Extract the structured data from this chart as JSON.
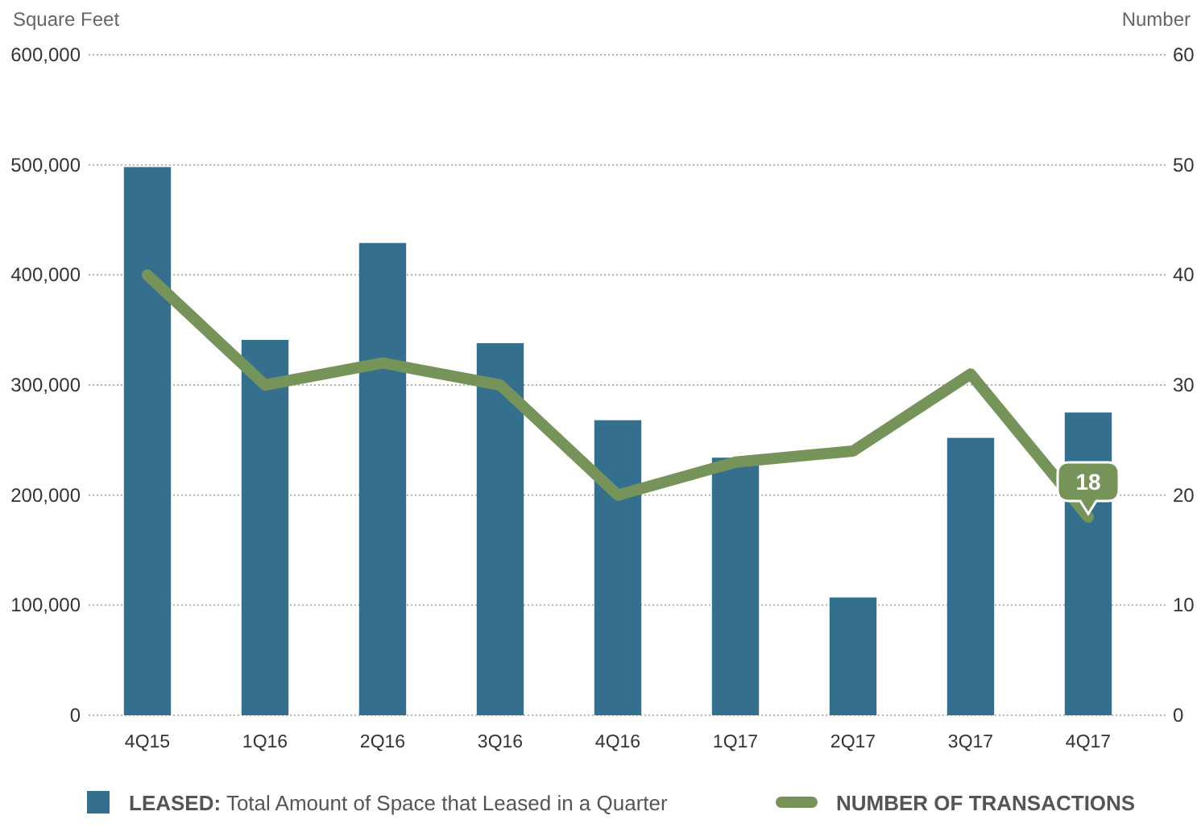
{
  "chart_data": {
    "type": "bar",
    "ylabel": "Square Feet",
    "y2label": "Number",
    "categories": [
      "4Q15",
      "1Q16",
      "2Q16",
      "3Q16",
      "4Q16",
      "1Q17",
      "2Q17",
      "3Q17",
      "4Q17"
    ],
    "ylim": [
      0,
      600000
    ],
    "yticks": [
      0,
      {
        "value": 100000,
        "label": "100,000"
      },
      {
        "value": 200000,
        "label": "200,000"
      },
      {
        "value": 300000,
        "label": "300,000"
      },
      {
        "value": 400000,
        "label": "400,000"
      },
      {
        "value": 500000,
        "label": "500,000"
      },
      {
        "value": 600000,
        "label": "600,000"
      }
    ],
    "y2lim": [
      0,
      60
    ],
    "y2ticks": [
      0,
      10,
      20,
      30,
      40,
      50,
      60
    ],
    "grid": "y",
    "legend": "bottom",
    "series": [
      {
        "name": "LEASED: Total Amount of Space that Leased in a Quarter",
        "color": "#356f8e",
        "values": [
          498000,
          341000,
          429000,
          338000,
          268000,
          234000,
          107000,
          252000,
          275000
        ]
      },
      {
        "name": "NUMBER OF TRANSACTIONS",
        "type": "line",
        "axis": "y2",
        "color": "#76945a",
        "values": [
          40,
          30,
          32,
          30,
          20,
          23,
          24,
          31,
          18
        ],
        "value_labels": [
          null,
          null,
          null,
          null,
          null,
          null,
          null,
          null,
          "18"
        ]
      }
    ]
  }
}
